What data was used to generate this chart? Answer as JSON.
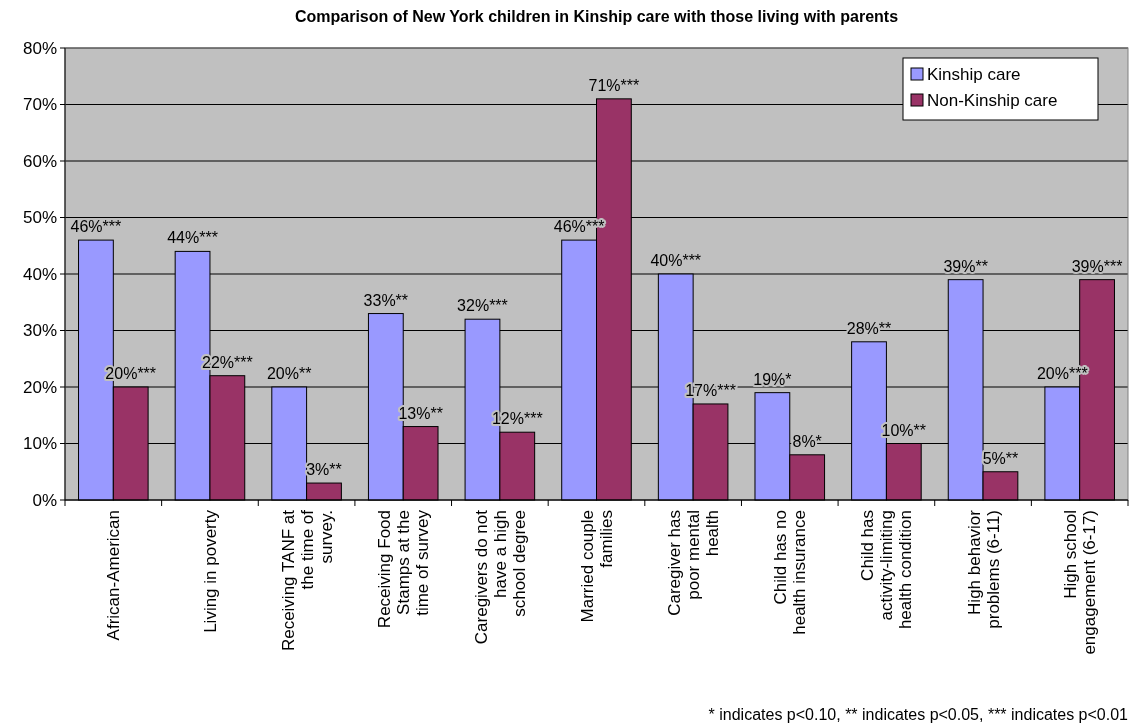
{
  "chart_data": {
    "type": "bar",
    "title": "Comparison of New York children in Kinship care with those living with parents",
    "categories": [
      "African-American",
      "Living in poverty",
      "Receiving TANF at the time of survey.",
      "Receiving Food Stamps at the time of survey",
      "Caregivers do not have a high school degree",
      "Married couple families",
      "Caregiver has poor mental health",
      "Child has no health insurance",
      "Child has activity-limiting health condition",
      "High behavior problems (6-11)",
      "High school engagement (6-17)"
    ],
    "series": [
      {
        "name": "Kinship care",
        "color": "#9999ff",
        "values": [
          46,
          44,
          20,
          33,
          32,
          46,
          40,
          19,
          28,
          39,
          20
        ],
        "value_labels": [
          "46%***",
          "44%***",
          "20%**",
          "33%**",
          "32%***",
          "46%***",
          "40%***",
          "19%*",
          "28%**",
          "39%**",
          "20%***"
        ]
      },
      {
        "name": "Non-Kinship care",
        "color": "#993366",
        "values": [
          20,
          22,
          3,
          13,
          12,
          71,
          17,
          8,
          10,
          5,
          39
        ],
        "value_labels": [
          "20%***",
          "22%***",
          "3%**",
          "13%**",
          "12%***",
          "71%***",
          "17%***",
          "8%*",
          "10%**",
          "5%**",
          "39%***"
        ]
      }
    ],
    "ylim": [
      0,
      80
    ],
    "yticks": [
      {
        "value": 0,
        "label": "0%"
      },
      {
        "value": 10,
        "label": "10%"
      },
      {
        "value": 20,
        "label": "20%"
      },
      {
        "value": 30,
        "label": "30%"
      },
      {
        "value": 40,
        "label": "40%"
      },
      {
        "value": 50,
        "label": "50%"
      },
      {
        "value": 60,
        "label": "60%"
      },
      {
        "value": 70,
        "label": "70%"
      },
      {
        "value": 80,
        "label": "80%"
      }
    ],
    "grid": "y",
    "legend": "top right",
    "annotations": [
      "* indicates p<0.10,  ** indicates p<0.05, *** indicates p<0.01"
    ]
  }
}
